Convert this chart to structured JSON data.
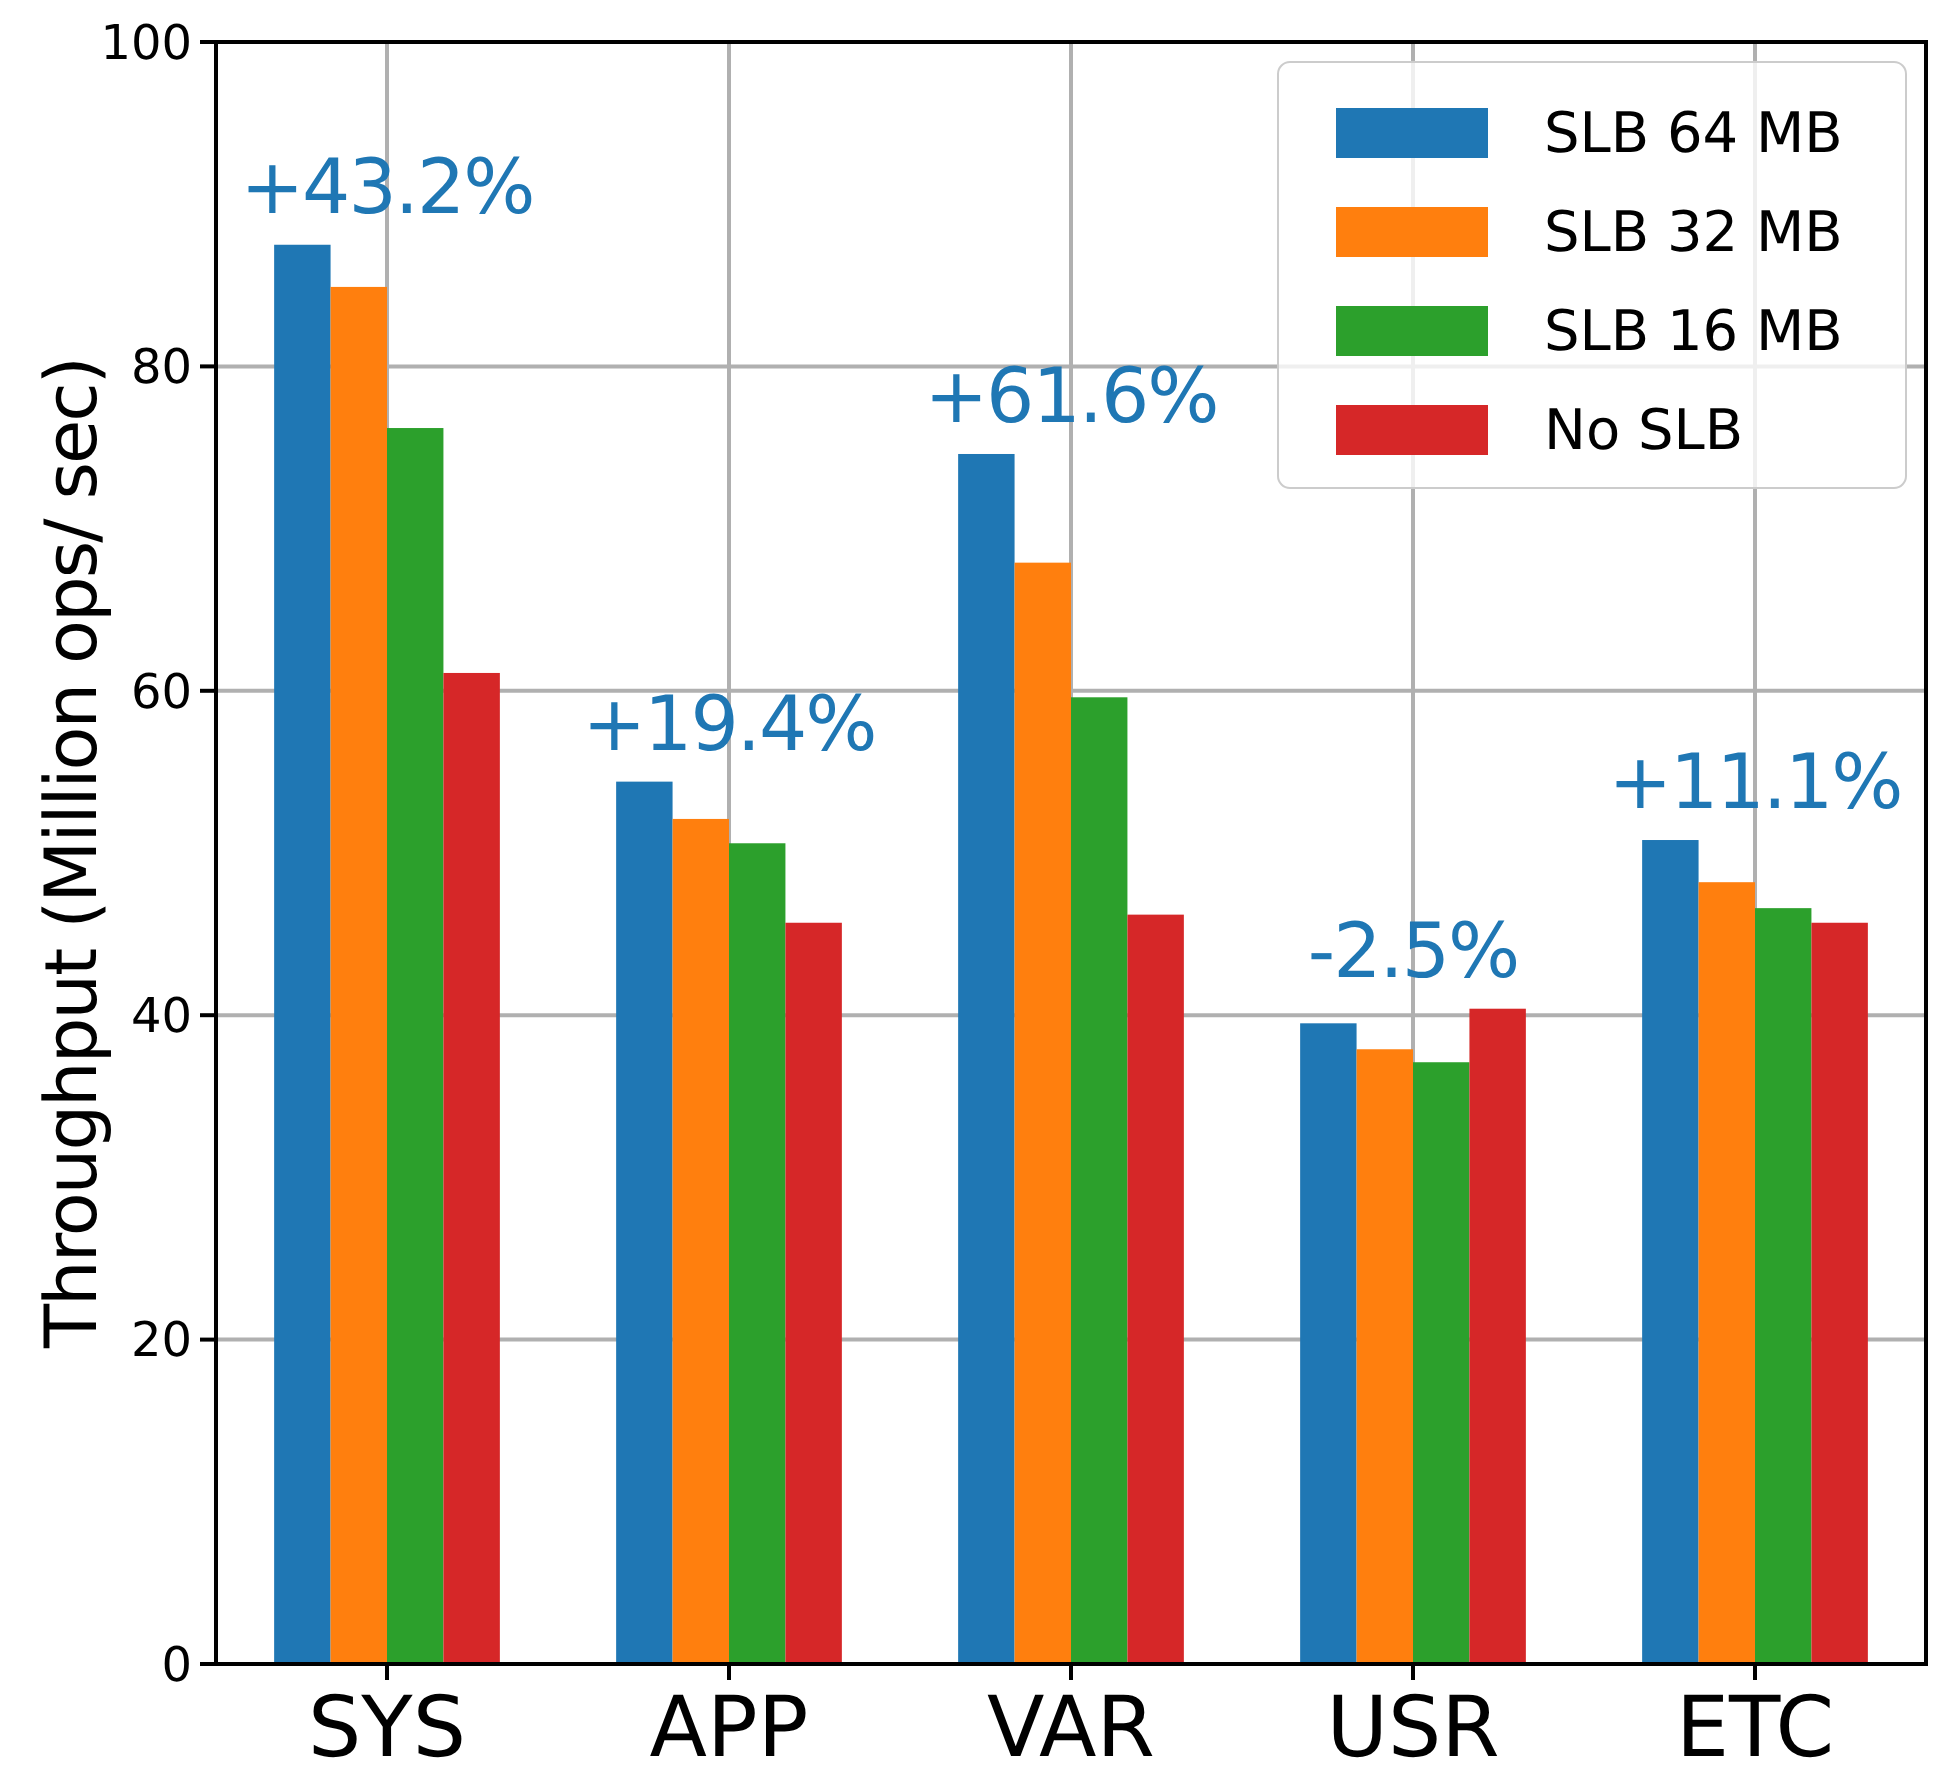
{
  "chart_data": {
    "type": "bar",
    "ylabel": "Throughput (Million ops/ sec)",
    "categories": [
      "SYS",
      "APP",
      "VAR",
      "USR",
      "ETC"
    ],
    "series": [
      {
        "name": "SLB 64 MB",
        "color": "#1f77b4",
        "values": [
          87.5,
          54.4,
          74.6,
          39.5,
          50.8
        ]
      },
      {
        "name": "SLB 32 MB",
        "color": "#ff7f0e",
        "values": [
          84.9,
          52.1,
          67.9,
          37.9,
          48.2
        ]
      },
      {
        "name": "SLB 16 MB",
        "color": "#2ca02c",
        "values": [
          76.2,
          50.6,
          59.6,
          37.1,
          46.6
        ]
      },
      {
        "name": "No SLB",
        "color": "#d62728",
        "values": [
          61.1,
          45.7,
          46.2,
          40.4,
          45.7
        ]
      }
    ],
    "annotations": [
      "+43.2%",
      "+19.4%",
      "+61.6%",
      "-2.5%",
      "+11.1%"
    ],
    "ylim": [
      0,
      100
    ],
    "yticks": [
      0,
      20,
      40,
      60,
      80,
      100
    ],
    "grid": true,
    "legend": "top right"
  }
}
